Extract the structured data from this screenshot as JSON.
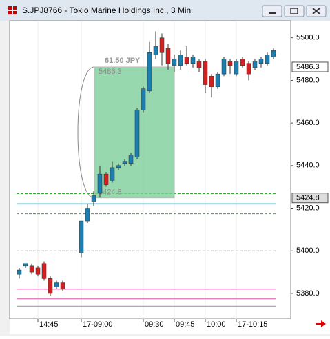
{
  "chart_data": {
    "type": "candlestick",
    "title": "S.JPJ8766 - Tokio Marine Holdings Inc., 3 Min",
    "categories": [
      null,
      null,
      null,
      "14:45",
      null,
      null,
      null,
      null,
      null,
      null,
      "17-09:00",
      null,
      null,
      null,
      null,
      null,
      null,
      null,
      null,
      null,
      "09:30",
      null,
      null,
      null,
      null,
      "09:45",
      null,
      null,
      null,
      null,
      "10:00",
      null,
      null,
      null,
      null,
      "17-10:15",
      null,
      null,
      null,
      null,
      null,
      null
    ],
    "open": [
      5389,
      5393,
      5393,
      5392,
      5394,
      5387,
      5383,
      5385,
      null,
      null,
      5399,
      5414,
      5423,
      5427,
      5436,
      5433,
      5439,
      5441,
      5441,
      5444,
      5466,
      5475,
      5492,
      5500,
      5495,
      5487,
      5487,
      5491,
      5488,
      5489,
      5489,
      5482,
      5477,
      5483,
      5489,
      5483,
      5490,
      5488,
      5486,
      5488,
      5488,
      5491
    ],
    "high": [
      5392,
      5394,
      5394,
      5393,
      5395,
      5388,
      5386,
      5386,
      null,
      null,
      5414,
      5422,
      5428,
      5440,
      5437,
      5442,
      5441,
      5443,
      5446,
      5467,
      5477,
      5498,
      5503,
      5502,
      5497,
      5492,
      5494,
      5496,
      5492,
      5490,
      5490,
      5483,
      5484,
      5491,
      5490,
      5490,
      5491,
      5489,
      5490,
      5491,
      5493,
      5495
    ],
    "low": [
      5387,
      5392,
      5389,
      5388,
      5386,
      5379,
      5382,
      5381,
      null,
      null,
      5397,
      5413,
      5421,
      5425,
      5430,
      5432,
      5438,
      5440,
      5440,
      5443,
      5465,
      5474,
      5490,
      5487,
      5485,
      5484,
      5485,
      5487,
      5486,
      5484,
      5474,
      5472,
      5476,
      5482,
      5483,
      5482,
      5486,
      5480,
      5485,
      5486,
      5487,
      5490
    ],
    "close": [
      5391,
      5394,
      5390,
      5389,
      5387,
      5380,
      5385,
      5382,
      null,
      null,
      5414,
      5420,
      5426,
      5436,
      5431,
      5439,
      5440,
      5442,
      5445,
      5466,
      5476,
      5493,
      5496,
      5493,
      5488,
      5490,
      5492,
      5488,
      5491,
      5486,
      5478,
      5477,
      5483,
      5490,
      5487,
      5489,
      5487,
      5483,
      5489,
      5490,
      5492,
      5494
    ],
    "up_color": "#1a7fb0",
    "down_color": "#d42020",
    "ylim": [
      5368,
      5508
    ],
    "yticks": [
      {
        "value": 5380,
        "label": "5380.0"
      },
      {
        "value": 5400,
        "label": "5400.0"
      },
      {
        "value": 5420,
        "label": "5420.0"
      },
      {
        "value": 5440,
        "label": "5440.0"
      },
      {
        "value": 5460,
        "label": "5460.0"
      },
      {
        "value": 5480,
        "label": "5480.0"
      },
      {
        "value": 5500,
        "label": "5500.0"
      }
    ],
    "levels": [
      {
        "value": 5422,
        "color": "#1aa8c8",
        "style": "solid"
      },
      {
        "value": 5426.8,
        "color": "#33aa33",
        "style": "dashed"
      },
      {
        "value": 5417.4,
        "color": "#33aa33",
        "style": "dashed"
      },
      {
        "value": 5400,
        "color": "#999999",
        "style": "dashed"
      },
      {
        "value": 5382,
        "color": "#e080c0",
        "style": "solid"
      },
      {
        "value": 5377.5,
        "color": "#e080c0",
        "style": "solid"
      },
      {
        "value": 5374,
        "color": "#aaaaaa",
        "style": "solid"
      }
    ],
    "measure": {
      "top": {
        "value": 5486.3,
        "label": "5486.3"
      },
      "bottom": {
        "value": 5424.8,
        "label": "5424.8"
      },
      "label": "61.50 JPY",
      "color": "#7fcf9a"
    },
    "price_tags": [
      {
        "value": 5486.3,
        "label": "5486.3"
      },
      {
        "value": 5424.8,
        "label": "5424.8"
      }
    ]
  }
}
